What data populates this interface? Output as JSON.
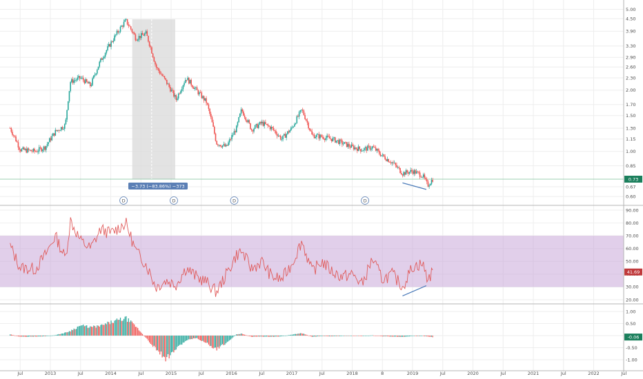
{
  "chart_data": [
    {
      "type": "candlestick",
      "scale": "log",
      "y_ticks": [
        "0.60",
        "0.67",
        "0.85",
        "1.00",
        "1.15",
        "1.30",
        "1.50",
        "1.70",
        "2.00",
        "2.30",
        "2.60",
        "2.90",
        "3.30",
        "3.90",
        "4.50",
        "5.00"
      ],
      "last_price_label": "0.73",
      "last_price": 0.73,
      "measure_label": "−3.73 (−83.86%) −373",
      "dividend_markers": [
        "D",
        "D",
        "D",
        "D"
      ],
      "close_series_approx": [
        {
          "t": "2012-05",
          "v": 1.3
        },
        {
          "t": "2012-07",
          "v": 1.02
        },
        {
          "t": "2012-10",
          "v": 1.0
        },
        {
          "t": "2012-12",
          "v": 1.05
        },
        {
          "t": "2013-02",
          "v": 1.25
        },
        {
          "t": "2013-04",
          "v": 1.35
        },
        {
          "t": "2013-05",
          "v": 2.2
        },
        {
          "t": "2013-07",
          "v": 2.3
        },
        {
          "t": "2013-09",
          "v": 2.1
        },
        {
          "t": "2013-11",
          "v": 2.8
        },
        {
          "t": "2014-01",
          "v": 3.4
        },
        {
          "t": "2014-04",
          "v": 4.4
        },
        {
          "t": "2014-06",
          "v": 3.6
        },
        {
          "t": "2014-08",
          "v": 3.8
        },
        {
          "t": "2014-10",
          "v": 2.6
        },
        {
          "t": "2014-12",
          "v": 2.2
        },
        {
          "t": "2015-02",
          "v": 1.8
        },
        {
          "t": "2015-04",
          "v": 2.3
        },
        {
          "t": "2015-06",
          "v": 2.0
        },
        {
          "t": "2015-08",
          "v": 1.75
        },
        {
          "t": "2015-10",
          "v": 1.1
        },
        {
          "t": "2015-12",
          "v": 1.05
        },
        {
          "t": "2016-02",
          "v": 1.3
        },
        {
          "t": "2016-03",
          "v": 1.6
        },
        {
          "t": "2016-05",
          "v": 1.28
        },
        {
          "t": "2016-07",
          "v": 1.38
        },
        {
          "t": "2016-09",
          "v": 1.3
        },
        {
          "t": "2016-11",
          "v": 1.15
        },
        {
          "t": "2017-01",
          "v": 1.3
        },
        {
          "t": "2017-03",
          "v": 1.6
        },
        {
          "t": "2017-05",
          "v": 1.2
        },
        {
          "t": "2017-07",
          "v": 1.18
        },
        {
          "t": "2017-09",
          "v": 1.15
        },
        {
          "t": "2017-11",
          "v": 1.1
        },
        {
          "t": "2018-01",
          "v": 1.05
        },
        {
          "t": "2018-03",
          "v": 1.02
        },
        {
          "t": "2018-05",
          "v": 1.05
        },
        {
          "t": "2018-07",
          "v": 0.95
        },
        {
          "t": "2018-09",
          "v": 0.88
        },
        {
          "t": "2018-11",
          "v": 0.78
        },
        {
          "t": "2019-01",
          "v": 0.8
        },
        {
          "t": "2019-03",
          "v": 0.76
        },
        {
          "t": "2019-04",
          "v": 0.68
        },
        {
          "t": "2019-05",
          "v": 0.73
        }
      ]
    },
    {
      "type": "line",
      "name": "RSI",
      "y_ticks": [
        "20.00",
        "30.00",
        "40.00",
        "50.00",
        "60.00",
        "70.00",
        "80.00",
        "90.00"
      ],
      "band": [
        30,
        70
      ],
      "last_value_label": "41.69",
      "last_value": 41.69,
      "values_approx": [
        {
          "t": "2012-05",
          "v": 62
        },
        {
          "t": "2012-07",
          "v": 45
        },
        {
          "t": "2012-10",
          "v": 44
        },
        {
          "t": "2012-12",
          "v": 55
        },
        {
          "t": "2013-02",
          "v": 70
        },
        {
          "t": "2013-04",
          "v": 52
        },
        {
          "t": "2013-05",
          "v": 82
        },
        {
          "t": "2013-07",
          "v": 66
        },
        {
          "t": "2013-09",
          "v": 60
        },
        {
          "t": "2013-11",
          "v": 75
        },
        {
          "t": "2014-01",
          "v": 72
        },
        {
          "t": "2014-04",
          "v": 80
        },
        {
          "t": "2014-06",
          "v": 58
        },
        {
          "t": "2014-08",
          "v": 48
        },
        {
          "t": "2014-10",
          "v": 30
        },
        {
          "t": "2014-12",
          "v": 35
        },
        {
          "t": "2015-02",
          "v": 32
        },
        {
          "t": "2015-04",
          "v": 45
        },
        {
          "t": "2015-06",
          "v": 38
        },
        {
          "t": "2015-08",
          "v": 34
        },
        {
          "t": "2015-10",
          "v": 26
        },
        {
          "t": "2015-12",
          "v": 40
        },
        {
          "t": "2016-02",
          "v": 55
        },
        {
          "t": "2016-03",
          "v": 58
        },
        {
          "t": "2016-05",
          "v": 44
        },
        {
          "t": "2016-07",
          "v": 50
        },
        {
          "t": "2016-09",
          "v": 38
        },
        {
          "t": "2016-11",
          "v": 36
        },
        {
          "t": "2017-01",
          "v": 48
        },
        {
          "t": "2017-03",
          "v": 66
        },
        {
          "t": "2017-05",
          "v": 42
        },
        {
          "t": "2017-07",
          "v": 50
        },
        {
          "t": "2017-09",
          "v": 42
        },
        {
          "t": "2017-11",
          "v": 38
        },
        {
          "t": "2018-01",
          "v": 40
        },
        {
          "t": "2018-03",
          "v": 32
        },
        {
          "t": "2018-05",
          "v": 52
        },
        {
          "t": "2018-07",
          "v": 36
        },
        {
          "t": "2018-09",
          "v": 40
        },
        {
          "t": "2018-11",
          "v": 30
        },
        {
          "t": "2019-01",
          "v": 46
        },
        {
          "t": "2019-03",
          "v": 48
        },
        {
          "t": "2019-04",
          "v": 36
        },
        {
          "t": "2019-05",
          "v": 41.69
        }
      ]
    },
    {
      "type": "histogram",
      "name": "MACD",
      "y_ticks": [
        "-1.00",
        "-0.50",
        "0.00",
        "0.50",
        "1.00"
      ],
      "last_value_label": "-0.06",
      "last_value": -0.06,
      "values_approx": [
        {
          "t": "2012-05",
          "v": 0.05
        },
        {
          "t": "2012-07",
          "v": -0.05
        },
        {
          "t": "2012-10",
          "v": -0.04
        },
        {
          "t": "2012-12",
          "v": -0.03
        },
        {
          "t": "2013-02",
          "v": 0.02
        },
        {
          "t": "2013-04",
          "v": 0.12
        },
        {
          "t": "2013-05",
          "v": 0.2
        },
        {
          "t": "2013-07",
          "v": 0.42
        },
        {
          "t": "2013-09",
          "v": 0.35
        },
        {
          "t": "2013-11",
          "v": 0.4
        },
        {
          "t": "2014-01",
          "v": 0.55
        },
        {
          "t": "2014-04",
          "v": 0.72
        },
        {
          "t": "2014-06",
          "v": 0.38
        },
        {
          "t": "2014-08",
          "v": -0.1
        },
        {
          "t": "2014-10",
          "v": -0.55
        },
        {
          "t": "2014-12",
          "v": -0.95
        },
        {
          "t": "2015-02",
          "v": -0.55
        },
        {
          "t": "2015-04",
          "v": -0.2
        },
        {
          "t": "2015-06",
          "v": -0.1
        },
        {
          "t": "2015-08",
          "v": -0.3
        },
        {
          "t": "2015-10",
          "v": -0.55
        },
        {
          "t": "2015-12",
          "v": -0.3
        },
        {
          "t": "2016-02",
          "v": 0.05
        },
        {
          "t": "2016-03",
          "v": 0.08
        },
        {
          "t": "2016-05",
          "v": -0.05
        },
        {
          "t": "2016-07",
          "v": -0.04
        },
        {
          "t": "2016-09",
          "v": -0.05
        },
        {
          "t": "2016-11",
          "v": -0.03
        },
        {
          "t": "2017-01",
          "v": 0.04
        },
        {
          "t": "2017-03",
          "v": 0.1
        },
        {
          "t": "2017-05",
          "v": -0.05
        },
        {
          "t": "2017-07",
          "v": -0.02
        },
        {
          "t": "2017-09",
          "v": -0.03
        },
        {
          "t": "2017-11",
          "v": -0.02
        },
        {
          "t": "2018-01",
          "v": -0.01
        },
        {
          "t": "2018-03",
          "v": -0.02
        },
        {
          "t": "2018-05",
          "v": 0.01
        },
        {
          "t": "2018-07",
          "v": -0.03
        },
        {
          "t": "2018-09",
          "v": -0.04
        },
        {
          "t": "2018-11",
          "v": -0.05
        },
        {
          "t": "2019-01",
          "v": -0.02
        },
        {
          "t": "2019-03",
          "v": -0.02
        },
        {
          "t": "2019-04",
          "v": -0.04
        },
        {
          "t": "2019-05",
          "v": -0.06
        }
      ]
    }
  ],
  "time_axis": {
    "labels": [
      {
        "t": "2012-07",
        "text": "Jul"
      },
      {
        "t": "2013-01",
        "text": "2013"
      },
      {
        "t": "2013-07",
        "text": "Jul"
      },
      {
        "t": "2014-01",
        "text": "2014"
      },
      {
        "t": "2014-07",
        "text": "Jul"
      },
      {
        "t": "2015-01",
        "text": "2015"
      },
      {
        "t": "2015-07",
        "text": "Jul"
      },
      {
        "t": "2016-01",
        "text": "2016"
      },
      {
        "t": "2016-07",
        "text": "Jul"
      },
      {
        "t": "2017-01",
        "text": "2017"
      },
      {
        "t": "2017-07",
        "text": "Jul"
      },
      {
        "t": "2018-01",
        "text": "2018"
      },
      {
        "t": "2018-07",
        "text": "8"
      },
      {
        "t": "2019-01",
        "text": "2019"
      },
      {
        "t": "2019-07",
        "text": "Jul"
      },
      {
        "t": "2020-01",
        "text": "2020"
      },
      {
        "t": "2020-07",
        "text": "Jul"
      },
      {
        "t": "2021-01",
        "text": "2021"
      },
      {
        "t": "2021-07",
        "text": "Jul"
      },
      {
        "t": "2022-01",
        "text": "2022"
      },
      {
        "t": "2022-07",
        "text": "Jul"
      }
    ]
  },
  "colors": {
    "up": "#26a69a",
    "down": "#ef5350",
    "rsi_line": "#e05a5a",
    "rsi_band": "#c8a8d8",
    "macd_pos": "#26a69a",
    "macd_neg": "#ef5350",
    "last_price_tag": "#1b7f5c",
    "rsi_tag": "#c0393b",
    "macd_tag": "#1b7f5c",
    "measure_tag": "#5b7fb5",
    "trendline": "#4a7ab8"
  }
}
